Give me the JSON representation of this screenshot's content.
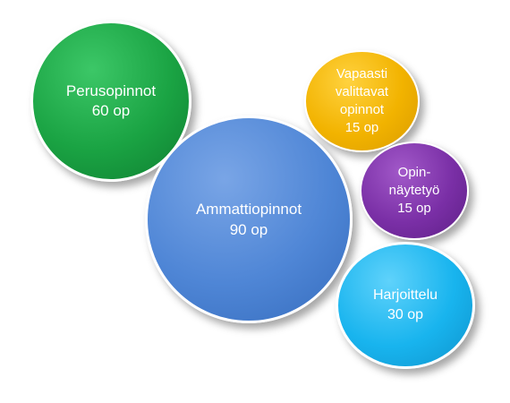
{
  "bubbles": [
    {
      "name": "Perusopinnot",
      "value": "60 op",
      "color": "#1aa343",
      "lines": [
        "Perusopinnot",
        "60 op"
      ]
    },
    {
      "name": "Ammattiopinnot",
      "value": "90 op",
      "color": "#4f86d6",
      "lines": [
        "Ammattiopinnot",
        "90 op"
      ]
    },
    {
      "name": "Vapaasti valittavat opinnot",
      "value": "15 op",
      "color": "#f2b300",
      "lines": [
        "Vapaasti",
        "valittavat",
        "opinnot",
        "15 op"
      ]
    },
    {
      "name": "Opin-näytetyö",
      "value": "15 op",
      "color": "#7a2fa6",
      "lines": [
        "Opin-",
        "näytetyö",
        "15 op"
      ]
    },
    {
      "name": "Harjoittelu",
      "value": "30 op",
      "color": "#18b4ee",
      "lines": [
        "Harjoittelu",
        "30 op"
      ]
    }
  ]
}
